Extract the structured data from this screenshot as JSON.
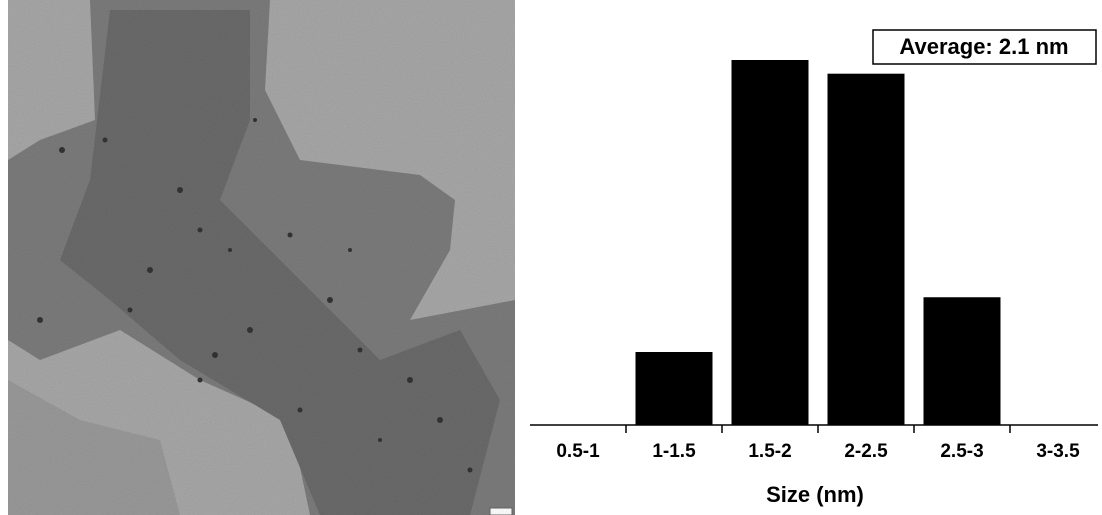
{
  "chart_data": {
    "type": "bar",
    "categories": [
      "0.5-1",
      "1-1.5",
      "1.5-2",
      "2-2.5",
      "2.5-3",
      "3-3.5"
    ],
    "values": [
      0,
      8,
      40,
      38.5,
      14,
      0
    ],
    "color": "#000000",
    "xlabel": "Size (nm)",
    "annotation": "Average: 2.1 nm"
  }
}
